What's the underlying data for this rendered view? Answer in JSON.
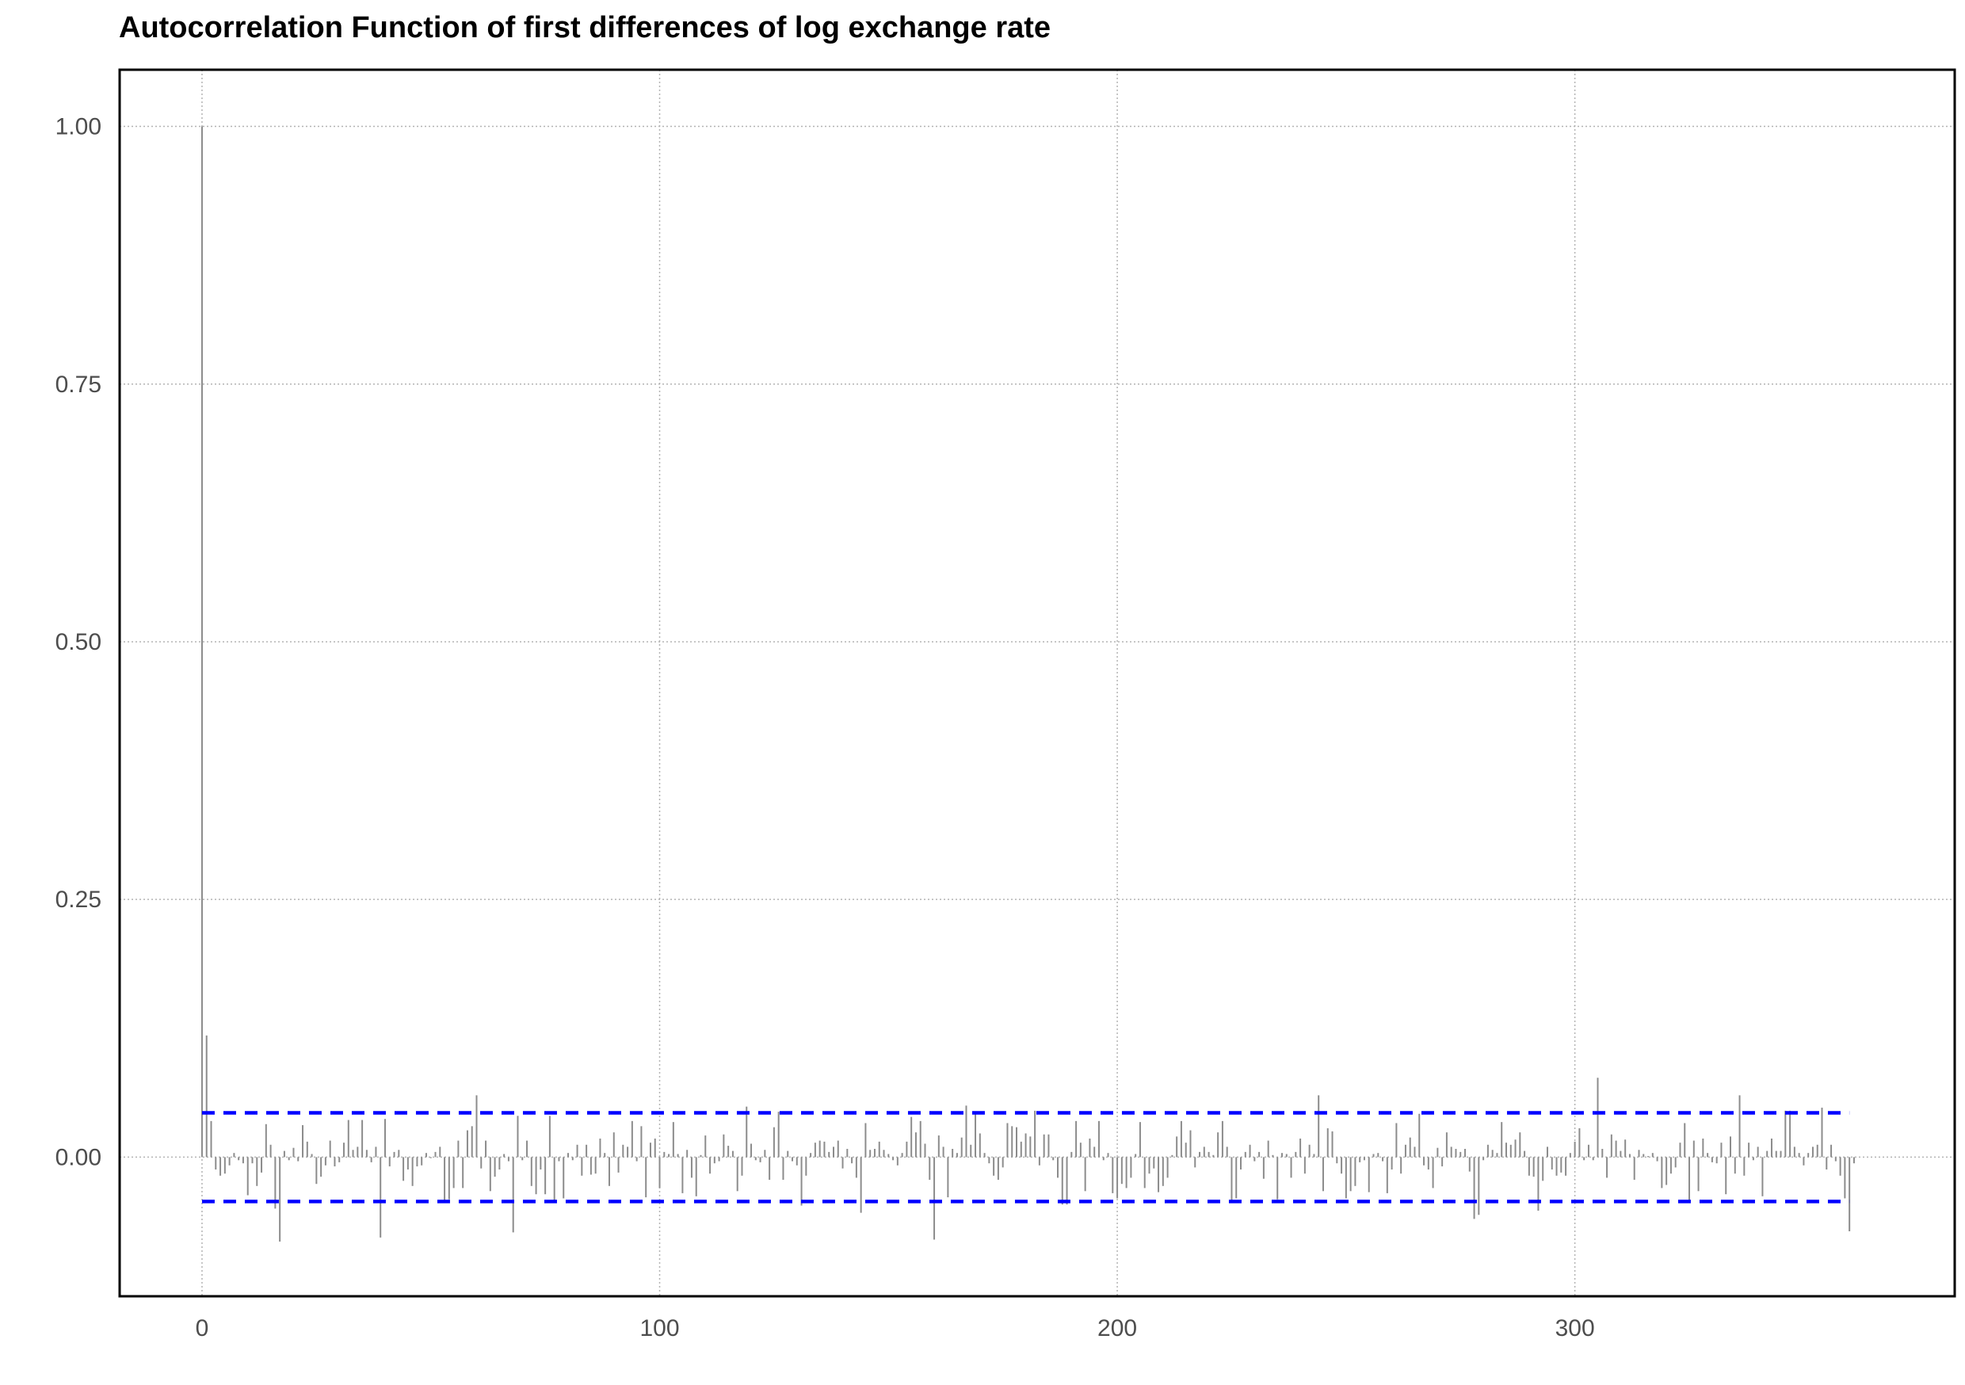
{
  "chart_data": {
    "type": "bar",
    "title": "Autocorrelation Function of first differences of log exchange rate",
    "xlabel": "",
    "ylabel": "",
    "xlim": [
      -18,
      383
    ],
    "ylim": [
      -0.135,
      1.055
    ],
    "x_ticks": [
      {
        "value": 0,
        "label": "0"
      },
      {
        "value": 100,
        "label": "100"
      },
      {
        "value": 200,
        "label": "200"
      },
      {
        "value": 300,
        "label": "300"
      }
    ],
    "y_ticks": [
      {
        "value": 0,
        "label": "0.00"
      },
      {
        "value": 0.25,
        "label": "0.25"
      },
      {
        "value": 0.5,
        "label": "0.50"
      },
      {
        "value": 0.75,
        "label": "0.75"
      },
      {
        "value": 1,
        "label": "1.00"
      }
    ],
    "grid": true,
    "confidence_band": {
      "upper": 0.043,
      "lower": -0.043,
      "color": "#0000ff",
      "style": "dashed"
    },
    "bar_color": "#8c8c8c",
    "lags_start": 0,
    "acf": [
      1.0,
      0.118,
      0.035,
      -0.012,
      -0.018,
      -0.016,
      -0.008,
      0.004,
      -0.003,
      -0.006,
      -0.037,
      -0.006,
      -0.028,
      -0.015,
      0.032,
      0.012,
      -0.05,
      -0.082,
      0.006,
      -0.003,
      0.009,
      -0.004,
      0.031,
      0.015,
      0.003,
      -0.026,
      -0.019,
      -0.008,
      0.016,
      -0.009,
      -0.005,
      0.014,
      0.036,
      0.007,
      0.01,
      0.036,
      0.007,
      -0.005,
      0.01,
      -0.078,
      0.037,
      -0.009,
      0.005,
      0.007,
      -0.023,
      -0.012,
      -0.028,
      -0.009,
      -0.008,
      0.004,
      -0.001,
      0.005,
      0.01,
      -0.044,
      -0.041,
      -0.03,
      0.016,
      -0.03,
      0.026,
      0.03,
      0.06,
      -0.011,
      0.016,
      -0.033,
      -0.019,
      -0.012,
      0.003,
      -0.004,
      -0.073,
      0.04,
      -0.003,
      0.016,
      -0.028,
      -0.036,
      -0.012,
      -0.036,
      0.04,
      -0.042,
      -0.004,
      -0.04,
      0.004,
      -0.003,
      0.012,
      -0.018,
      0.012,
      -0.017,
      -0.016,
      0.018,
      0.004,
      -0.028,
      0.024,
      -0.015,
      0.012,
      0.01,
      0.035,
      -0.004,
      0.03,
      -0.039,
      0.014,
      0.018,
      -0.03,
      0.005,
      0.003,
      0.034,
      0.003,
      -0.035,
      0.007,
      -0.02,
      -0.038,
      0.002,
      0.021,
      -0.016,
      -0.006,
      -0.004,
      0.022,
      0.011,
      0.006,
      -0.033,
      -0.018,
      0.049,
      0.013,
      -0.003,
      -0.005,
      0.007,
      -0.022,
      0.029,
      0.044,
      -0.022,
      0.006,
      -0.004,
      -0.008,
      -0.047,
      -0.018,
      0.004,
      0.014,
      0.016,
      0.015,
      0.005,
      0.01,
      0.016,
      -0.011,
      0.008,
      -0.006,
      -0.02,
      -0.054,
      0.033,
      0.007,
      0.008,
      0.015,
      0.007,
      0.003,
      -0.003,
      -0.008,
      0.004,
      0.015,
      0.039,
      0.024,
      0.035,
      0.013,
      -0.022,
      -0.08,
      0.021,
      0.01,
      -0.039,
      0.008,
      0.004,
      0.019,
      0.05,
      0.012,
      0.043,
      0.023,
      0.004,
      -0.006,
      -0.018,
      -0.022,
      -0.01,
      0.033,
      0.03,
      0.029,
      0.015,
      0.023,
      0.02,
      0.045,
      -0.008,
      0.022,
      0.022,
      -0.003,
      -0.02,
      -0.046,
      -0.046,
      0.005,
      0.035,
      0.014,
      -0.033,
      0.018,
      0.01,
      0.035,
      -0.003,
      0.004,
      -0.035,
      -0.04,
      -0.026,
      -0.03,
      -0.02,
      0.003,
      0.034,
      -0.03,
      -0.016,
      -0.011,
      -0.034,
      -0.028,
      -0.02,
      0.002,
      0.02,
      0.035,
      0.014,
      0.026,
      -0.01,
      0.005,
      0.01,
      0.005,
      0.002,
      0.024,
      0.035,
      0.01,
      -0.044,
      -0.04,
      -0.012,
      0.005,
      0.012,
      -0.004,
      0.005,
      -0.021,
      0.016,
      0.002,
      -0.041,
      0.004,
      0.003,
      -0.02,
      0.005,
      0.018,
      -0.016,
      0.012,
      0.003,
      0.06,
      -0.033,
      0.028,
      0.025,
      -0.006,
      -0.016,
      -0.04,
      -0.033,
      -0.028,
      -0.005,
      -0.003,
      -0.034,
      0.003,
      0.004,
      -0.004,
      -0.035,
      -0.012,
      0.033,
      -0.016,
      0.012,
      0.019,
      0.01,
      0.042,
      -0.008,
      -0.012,
      -0.03,
      0.009,
      -0.009,
      0.024,
      0.01,
      0.008,
      0.005,
      0.008,
      -0.014,
      -0.06,
      -0.056,
      -0.003,
      0.012,
      0.007,
      0.004,
      0.034,
      0.014,
      0.012,
      0.017,
      0.024,
      0.006,
      -0.018,
      -0.019,
      -0.052,
      -0.023,
      0.01,
      -0.012,
      -0.018,
      -0.015,
      -0.018,
      0.004,
      0.015,
      0.028,
      -0.003,
      0.012,
      -0.003,
      0.077,
      0.008,
      -0.02,
      0.022,
      0.016,
      0.006,
      0.017,
      0.003,
      -0.022,
      0.007,
      0.003,
      0.001,
      0.004,
      -0.004,
      -0.03,
      -0.027,
      -0.016,
      -0.01,
      0.014,
      0.033,
      -0.042,
      0.016,
      -0.033,
      0.018,
      0.004,
      -0.005,
      -0.006,
      0.014,
      -0.036,
      0.02,
      -0.016,
      0.06,
      -0.018,
      0.014,
      -0.003,
      0.01,
      -0.038,
      0.006,
      0.018,
      0.006,
      0.006,
      0.045,
      0.045,
      0.01,
      0.004,
      -0.008,
      0.004,
      0.01,
      0.012,
      0.048,
      -0.012,
      0.012,
      -0.004,
      -0.018,
      -0.04,
      -0.072,
      -0.006
    ]
  }
}
